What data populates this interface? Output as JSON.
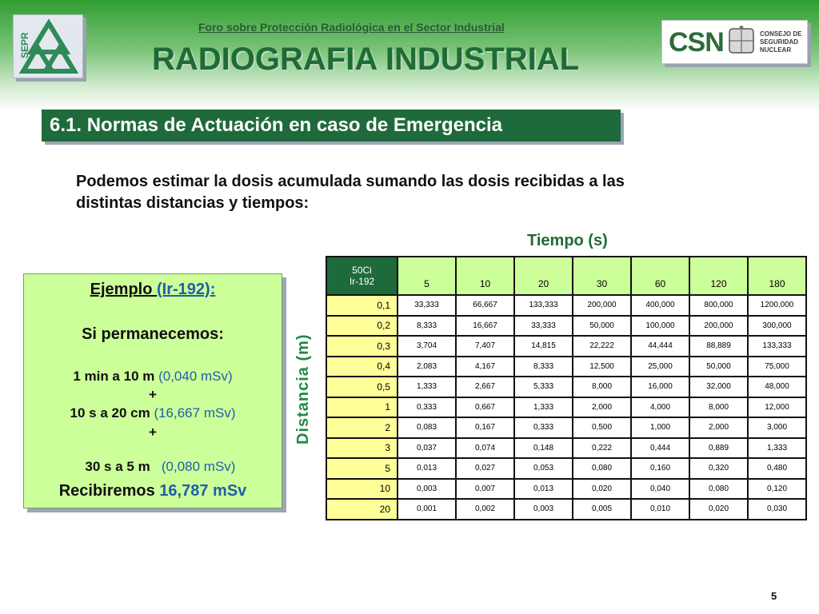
{
  "header": {
    "forum_title": "Foro sobre Protección Radiológica en el Sector Industrial",
    "main_title": "RADIOGRAFIA INDUSTRIAL",
    "sepr_logo_text": "SEPR",
    "csn_logo_text": "CSN",
    "csn_org_line1": "CONSEJO DE",
    "csn_org_line2": "SEGURIDAD NUCLEAR"
  },
  "section": {
    "title": "6.1. Normas de Actuación en caso de Emergencia"
  },
  "intro": {
    "line1": "Podemos estimar la dosis acumulada sumando las dosis recibidas a las",
    "line2": "distintas distancias y tiempos:"
  },
  "example": {
    "heading_a": "Ejemplo ",
    "heading_b": "(Ir-192):",
    "stay": "Si permanecemos:",
    "item1_a": "1 min a 10 m ",
    "item1_b": "(0,040 mSv)",
    "plus1": "+",
    "item2_a": "10 s a 20 cm ",
    "item2_b": "(16,667 mSv)",
    "plus2": "+",
    "item3_a": "30 s a 5 m   ",
    "item3_b": "(0,080 mSv)",
    "result_a": "Recibiremos ",
    "result_b": "16,787 mSv"
  },
  "table": {
    "time_label": "Tiempo (s)",
    "distance_label": "Distancia (m)",
    "corner_line1": "50Ci",
    "corner_line2": "Ir-192",
    "times": [
      "5",
      "10",
      "20",
      "30",
      "60",
      "120",
      "180"
    ],
    "rows": [
      {
        "d": "0,1",
        "v": [
          "33,333",
          "66,667",
          "133,333",
          "200,000",
          "400,000",
          "800,000",
          "1200,000"
        ]
      },
      {
        "d": "0,2",
        "v": [
          "8,333",
          "16,667",
          "33,333",
          "50,000",
          "100,000",
          "200,000",
          "300,000"
        ]
      },
      {
        "d": "0,3",
        "v": [
          "3,704",
          "7,407",
          "14,815",
          "22,222",
          "44,444",
          "88,889",
          "133,333"
        ]
      },
      {
        "d": "0,4",
        "v": [
          "2,083",
          "4,167",
          "8,333",
          "12,500",
          "25,000",
          "50,000",
          "75,000"
        ]
      },
      {
        "d": "0,5",
        "v": [
          "1,333",
          "2,667",
          "5,333",
          "8,000",
          "16,000",
          "32,000",
          "48,000"
        ]
      },
      {
        "d": "1",
        "v": [
          "0,333",
          "0,667",
          "1,333",
          "2,000",
          "4,000",
          "8,000",
          "12,000"
        ]
      },
      {
        "d": "2",
        "v": [
          "0,083",
          "0,167",
          "0,333",
          "0,500",
          "1,000",
          "2,000",
          "3,000"
        ]
      },
      {
        "d": "3",
        "v": [
          "0,037",
          "0,074",
          "0,148",
          "0,222",
          "0,444",
          "0,889",
          "1,333"
        ]
      },
      {
        "d": "5",
        "v": [
          "0,013",
          "0,027",
          "0,053",
          "0,080",
          "0,160",
          "0,320",
          "0,480"
        ]
      },
      {
        "d": "10",
        "v": [
          "0,003",
          "0,007",
          "0,013",
          "0,020",
          "0,040",
          "0,080",
          "0,120"
        ]
      },
      {
        "d": "20",
        "v": [
          "0,001",
          "0,002",
          "0,003",
          "0,005",
          "0,010",
          "0,020",
          "0,030"
        ]
      }
    ]
  },
  "footer": {
    "page_number": "5"
  }
}
